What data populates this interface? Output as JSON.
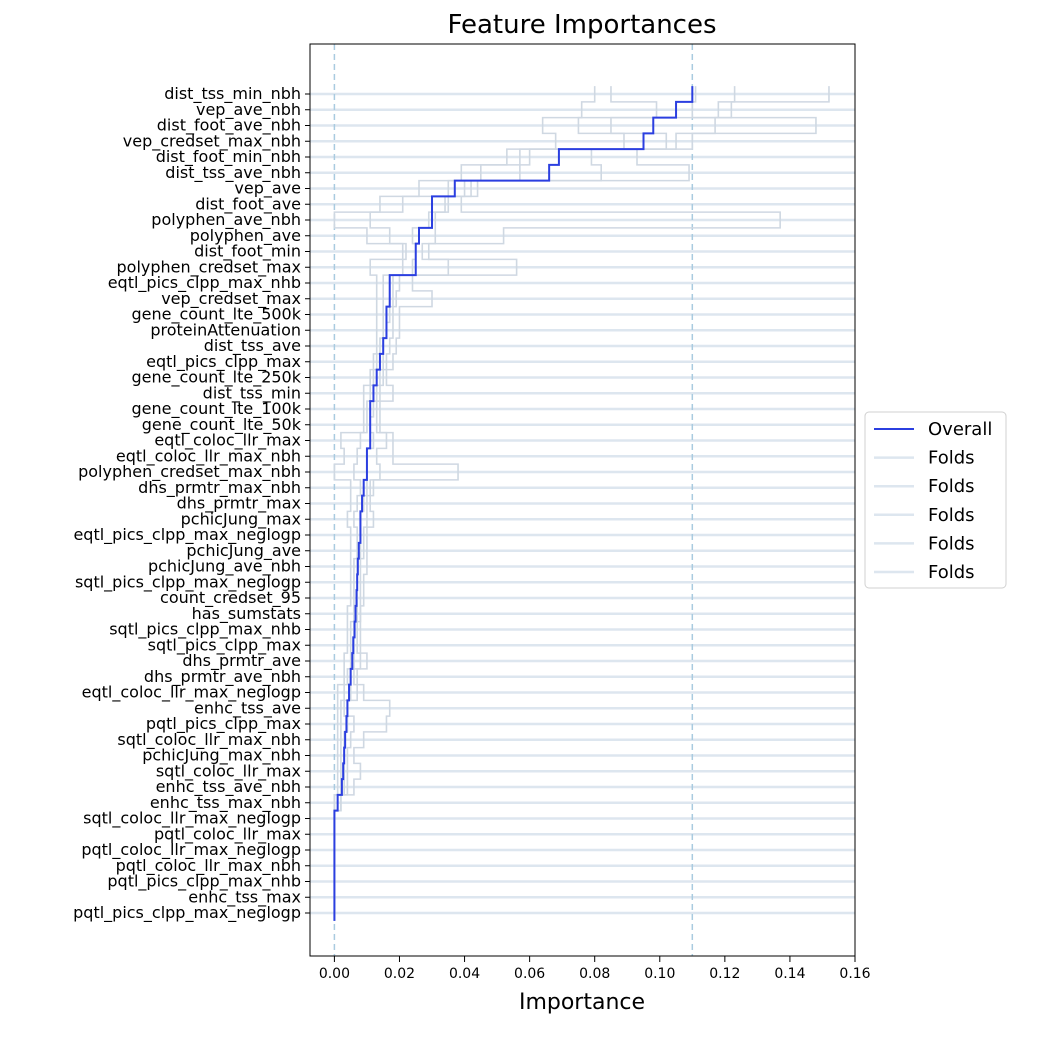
{
  "chart_data": {
    "type": "line",
    "title": "Feature Importances",
    "xlabel": "Importance",
    "ylabel": "",
    "xlim": [
      -0.0075,
      0.16
    ],
    "xticks": [
      0.0,
      0.02,
      0.04,
      0.06,
      0.08,
      0.1,
      0.12,
      0.14,
      0.16
    ],
    "xtick_labels": [
      "0.00",
      "0.02",
      "0.04",
      "0.06",
      "0.08",
      "0.10",
      "0.12",
      "0.14",
      "0.16"
    ],
    "vlines": [
      0.0,
      0.11
    ],
    "legend": {
      "placement": "center-right",
      "entries": [
        "Overall",
        "Folds",
        "Folds",
        "Folds",
        "Folds",
        "Folds"
      ]
    },
    "colors": {
      "overall": "#2b3fe0",
      "folds": "#dde6ef",
      "vline": "#a9cbe0"
    },
    "categories": [
      "dist_tss_min_nbh",
      "vep_ave_nbh",
      "dist_foot_ave_nbh",
      "vep_credset_max_nbh",
      "dist_foot_min_nbh",
      "dist_tss_ave_nbh",
      "vep_ave",
      "dist_foot_ave",
      "polyphen_ave_nbh",
      "polyphen_ave",
      "dist_foot_min",
      "polyphen_credset_max",
      "eqtl_pics_clpp_max_nhb",
      "vep_credset_max",
      "gene_count_lte_500k",
      "proteinAttenuation",
      "dist_tss_ave",
      "eqtl_pics_clpp_max",
      "gene_count_lte_250k",
      "dist_tss_min",
      "gene_count_lte_100k",
      "gene_count_lte_50k",
      "eqtl_coloc_llr_max",
      "eqtl_coloc_llr_max_nbh",
      "polyphen_credset_max_nbh",
      "dhs_prmtr_max_nbh",
      "dhs_prmtr_max",
      "pchicJung_max",
      "eqtl_pics_clpp_max_neglogp",
      "pchicJung_ave",
      "pchicJung_ave_nbh",
      "sqtl_pics_clpp_max_neglogp",
      "count_credset_95",
      "has_sumstats",
      "sqtl_pics_clpp_max_nhb",
      "sqtl_pics_clpp_max",
      "dhs_prmtr_ave",
      "dhs_prmtr_ave_nbh",
      "eqtl_coloc_llr_max_neglogp",
      "enhc_tss_ave",
      "pqtl_pics_clpp_max",
      "sqtl_coloc_llr_max_nbh",
      "pchicJung_max_nbh",
      "sqtl_coloc_llr_max",
      "enhc_tss_ave_nbh",
      "enhc_tss_max_nbh",
      "sqtl_coloc_llr_max_neglogp",
      "pqtl_coloc_llr_max",
      "pqtl_coloc_llr_max_neglogp",
      "pqtl_coloc_llr_max_nbh",
      "pqtl_pics_clpp_max_nhb",
      "enhc_tss_max",
      "pqtl_pics_clpp_max_neglogp"
    ],
    "overall": [
      0.11,
      0.105,
      0.098,
      0.095,
      0.069,
      0.066,
      0.037,
      0.03,
      0.03,
      0.026,
      0.025,
      0.025,
      0.017,
      0.017,
      0.016,
      0.016,
      0.015,
      0.014,
      0.013,
      0.012,
      0.011,
      0.011,
      0.011,
      0.01,
      0.01,
      0.009,
      0.0085,
      0.008,
      0.008,
      0.0075,
      0.0072,
      0.007,
      0.0068,
      0.0065,
      0.0062,
      0.0058,
      0.0055,
      0.005,
      0.0045,
      0.004,
      0.0037,
      0.0033,
      0.003,
      0.0027,
      0.0023,
      0.001,
      0.0,
      0.0,
      0.0,
      0.0,
      0.0,
      0.0,
      0.0
    ],
    "folds": [
      [
        0.08,
        0.085,
        0.123,
        0.152,
        0.111
      ],
      [
        0.076,
        0.099,
        0.118,
        0.122,
        0.11
      ],
      [
        0.064,
        0.075,
        0.085,
        0.117,
        0.148
      ],
      [
        0.068,
        0.089,
        0.102,
        0.105,
        0.11
      ],
      [
        0.053,
        0.057,
        0.06,
        0.079,
        0.093
      ],
      [
        0.039,
        0.045,
        0.057,
        0.082,
        0.109
      ],
      [
        0.026,
        0.035,
        0.04,
        0.042,
        0.044
      ],
      [
        0.014,
        0.021,
        0.034,
        0.035,
        0.039
      ],
      [
        0.0,
        0.011,
        0.029,
        0.031,
        0.137
      ],
      [
        0.01,
        0.017,
        0.024,
        0.031,
        0.052
      ],
      [
        0.021,
        0.022,
        0.025,
        0.027,
        0.029
      ],
      [
        0.011,
        0.021,
        0.024,
        0.035,
        0.056
      ],
      [
        0.013,
        0.015,
        0.018,
        0.02,
        0.024
      ],
      [
        0.013,
        0.015,
        0.018,
        0.019,
        0.03
      ],
      [
        0.013,
        0.015,
        0.017,
        0.018,
        0.02
      ],
      [
        0.013,
        0.015,
        0.016,
        0.018,
        0.02
      ],
      [
        0.013,
        0.014,
        0.015,
        0.017,
        0.019
      ],
      [
        0.012,
        0.013,
        0.015,
        0.016,
        0.018
      ],
      [
        0.011,
        0.012,
        0.014,
        0.015,
        0.016
      ],
      [
        0.009,
        0.011,
        0.013,
        0.014,
        0.018
      ],
      [
        0.009,
        0.01,
        0.012,
        0.013,
        0.014
      ],
      [
        0.009,
        0.01,
        0.011,
        0.013,
        0.014
      ],
      [
        0.002,
        0.008,
        0.012,
        0.016,
        0.018
      ],
      [
        0.003,
        0.007,
        0.01,
        0.013,
        0.018
      ],
      [
        0.0,
        0.006,
        0.01,
        0.014,
        0.038
      ],
      [
        0.005,
        0.008,
        0.01,
        0.011,
        0.012
      ],
      [
        0.005,
        0.007,
        0.009,
        0.01,
        0.011
      ],
      [
        0.004,
        0.006,
        0.008,
        0.01,
        0.012
      ],
      [
        0.005,
        0.007,
        0.008,
        0.009,
        0.01
      ],
      [
        0.005,
        0.007,
        0.008,
        0.009,
        0.01
      ],
      [
        0.005,
        0.006,
        0.007,
        0.008,
        0.01
      ],
      [
        0.005,
        0.006,
        0.007,
        0.008,
        0.009
      ],
      [
        0.005,
        0.006,
        0.007,
        0.008,
        0.009
      ],
      [
        0.004,
        0.006,
        0.007,
        0.008,
        0.008
      ],
      [
        0.004,
        0.005,
        0.006,
        0.007,
        0.008
      ],
      [
        0.004,
        0.005,
        0.006,
        0.007,
        0.008
      ],
      [
        0.003,
        0.005,
        0.006,
        0.008,
        0.01
      ],
      [
        0.003,
        0.004,
        0.005,
        0.006,
        0.007
      ],
      [
        0.001,
        0.003,
        0.005,
        0.007,
        0.009
      ],
      [
        0.001,
        0.002,
        0.003,
        0.004,
        0.017
      ],
      [
        0.001,
        0.002,
        0.004,
        0.006,
        0.016
      ],
      [
        0.001,
        0.002,
        0.003,
        0.005,
        0.009
      ],
      [
        0.001,
        0.002,
        0.003,
        0.004,
        0.006
      ],
      [
        0.001,
        0.002,
        0.003,
        0.004,
        0.008
      ],
      [
        0.001,
        0.002,
        0.003,
        0.004,
        0.006
      ],
      [
        0.0,
        0.0,
        0.001,
        0.002,
        0.002
      ],
      [
        0.0,
        0.0,
        0.0,
        0.0,
        0.0
      ],
      [
        0.0,
        0.0,
        0.0,
        0.0,
        0.0
      ],
      [
        0.0,
        0.0,
        0.0,
        0.0,
        0.0
      ],
      [
        0.0,
        0.0,
        0.0,
        0.0,
        0.0
      ],
      [
        0.0,
        0.0,
        0.0,
        0.0,
        0.0
      ],
      [
        0.0,
        0.0,
        0.0,
        0.0,
        0.0
      ],
      [
        0.0,
        0.0,
        0.0,
        0.0,
        0.0
      ]
    ]
  }
}
